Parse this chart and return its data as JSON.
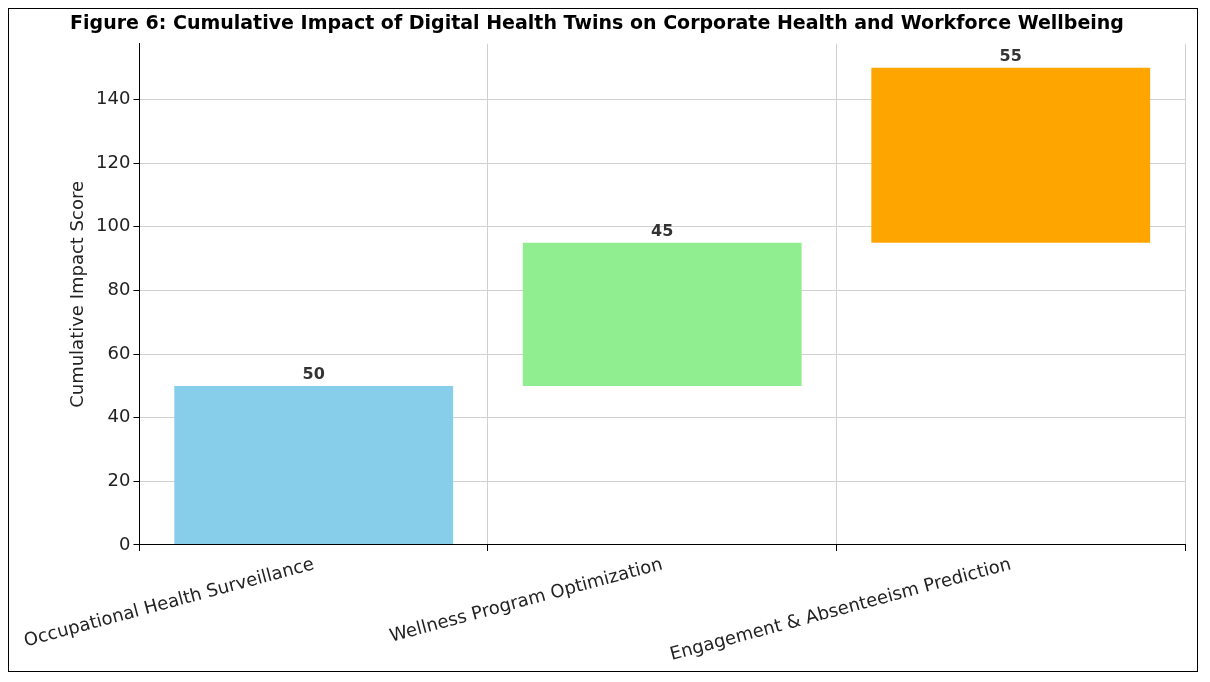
{
  "chart_data": {
    "type": "bar",
    "title": "Figure 6: Cumulative Impact of Digital Health Twins on Corporate Health and Workforce Wellbeing",
    "ylabel": "Cumulative Impact Score",
    "categories": [
      "Occupational Health Surveillance",
      "Wellness Program Optimization",
      "Engagement & Absenteeism Prediction"
    ],
    "values": [
      50,
      45,
      55
    ],
    "base": [
      0,
      50,
      95
    ],
    "colors": [
      "#87ceeb",
      "#90ee90",
      "#ffa500"
    ],
    "ylim": [
      0,
      157.5
    ],
    "yticks": [
      0,
      20,
      40,
      60,
      80,
      100,
      120,
      140
    ],
    "grid": true,
    "data_labels": true
  }
}
